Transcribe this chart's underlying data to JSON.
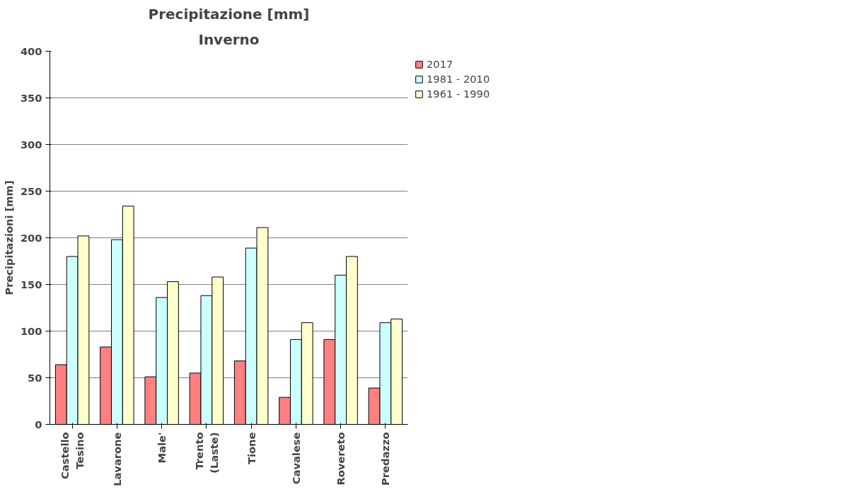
{
  "chart_data": {
    "type": "bar",
    "title": "Precipitazione [mm]",
    "subtitle": "Inverno",
    "ylabel": "Precipitazioni [mm]",
    "categories": [
      "Castello\nTesino",
      "Lavarone",
      "Male'",
      "Trento\n(Laste)",
      "Tione",
      "Cavalese",
      "Rovereto",
      "Predazzo"
    ],
    "series": [
      {
        "name": "2017",
        "color": "#ff8080",
        "values": [
          64,
          83,
          51,
          55,
          68,
          29,
          91,
          39
        ]
      },
      {
        "name": "1981 - 2010",
        "color": "#ccffff",
        "values": [
          180,
          198,
          136,
          138,
          189,
          91,
          160,
          109
        ]
      },
      {
        "name": "1961 - 1990",
        "color": "#ffffcc",
        "values": [
          202,
          234,
          153,
          158,
          211,
          109,
          180,
          113
        ]
      }
    ],
    "ylim": [
      0,
      400
    ],
    "yticks": [
      0,
      50,
      100,
      150,
      200,
      250,
      300,
      350,
      400
    ],
    "grid": "y",
    "legend": "right"
  }
}
